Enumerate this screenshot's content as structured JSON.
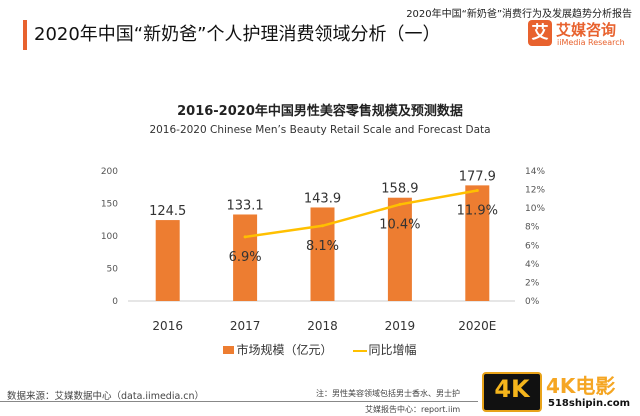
{
  "header": {
    "report_title": "2020年中国“新奶爸”消费行为及发展趋势分析报告",
    "page_title": "2020年中国“新奶爸”个人护理消费领域分析（一）",
    "logo_mark": "艾",
    "logo_cn": "艾媒咨询",
    "logo_en": "iiMedia Research"
  },
  "chart_data": {
    "type": "bar+line",
    "title": "2016-2020年中国男性美容零售规模及预测数据",
    "subtitle": "2016-2020 Chinese Men’s Beauty Retail Scale and Forecast Data",
    "categories": [
      "2016",
      "2017",
      "2018",
      "2019",
      "2020E"
    ],
    "series": [
      {
        "name": "市场规模（亿元）",
        "type": "bar",
        "axis": "left",
        "values": [
          124.5,
          133.1,
          143.9,
          158.9,
          177.9
        ],
        "labels": [
          "124.5",
          "133.1",
          "143.9",
          "158.9",
          "177.9"
        ],
        "color": "#ED7D31"
      },
      {
        "name": "同比增幅",
        "type": "line",
        "axis": "right",
        "values": [
          null,
          6.9,
          8.1,
          10.4,
          11.9
        ],
        "labels": [
          "",
          "6.9%",
          "8.1%",
          "10.4%",
          "11.9%"
        ],
        "color": "#FFC000"
      }
    ],
    "left_axis": {
      "ylim": [
        0,
        200
      ],
      "ticks": [
        "0",
        "50",
        "100",
        "150",
        "200"
      ]
    },
    "right_axis": {
      "ylim": [
        0,
        14
      ],
      "ticks": [
        "0%",
        "2%",
        "4%",
        "6%",
        "8%",
        "10%",
        "12%",
        "14%"
      ]
    },
    "grid": false,
    "legend": "bottom"
  },
  "footer": {
    "source": "数据来源：艾媒数据中心（data.iimedia.cn）",
    "note": "注：男性美容领域包括男士香水、男士护",
    "report_center": "艾媒报告中心：report.iim"
  },
  "watermark": {
    "badge": "4K",
    "brand": "4K电影",
    "url": "518shipin.com"
  }
}
